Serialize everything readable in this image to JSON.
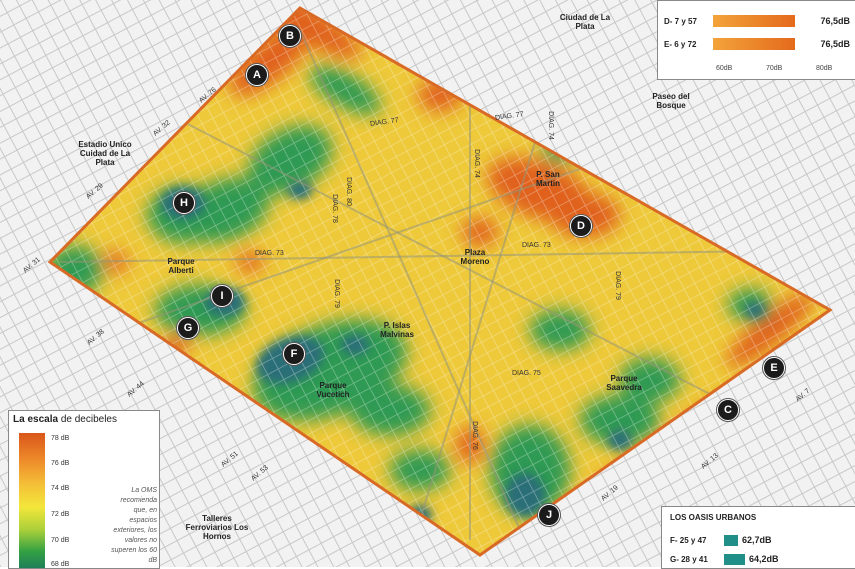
{
  "colors": {
    "loud": "#e0601c",
    "mid": "#f0d23a",
    "quiet": "#2d9a52",
    "quietest": "#2a6e78",
    "block_line": "#c9c9c9",
    "legend_bar": "#e46a1c",
    "oasis_bar": "#1f8f87"
  },
  "markers": [
    "A",
    "B",
    "C",
    "D",
    "E",
    "F",
    "G",
    "H",
    "I",
    "J"
  ],
  "places": {
    "ciudad": "Ciudad de La Plata",
    "paseo": "Paseo del Bosque",
    "estadio": "Estadio Unico Cuidad de La Plata",
    "parque_alberti": "Parque Alberti",
    "plaza_moreno": "Plaza Moreno",
    "p_san_martin": "P. San Martin",
    "p_malvinas": "P. Islas Malvinas",
    "parque_vucetich": "Parque Vucetich",
    "parque_saavedra": "Parque Saavedra",
    "talleres": "Talleres Ferroviarios Los Hornos"
  },
  "streets": {
    "diag77": "DIAG. 77",
    "diag77b": "DIAG. 77",
    "diag73a": "DIAG. 73",
    "diag73b": "DIAG. 73",
    "diag74": "DIAG. 74",
    "diag74b": "DIAG. 74",
    "diag78": "DIAG. 78",
    "diag79": "DIAG. 79",
    "diag75": "DIAG. 75",
    "diag80": "DIAG. 80",
    "diag76": "DIAG. 76",
    "diag79b": "DIAG. 79",
    "av76": "AV. 76",
    "av32": "AV. 32",
    "av29": "AV. 29",
    "av31": "AV. 31",
    "av38": "AV. 38",
    "av44": "AV. 44",
    "av51": "AV. 51",
    "av53": "AV. 53",
    "av13": "AV. 13",
    "av7": "AV. 7",
    "av19": "AV. 19"
  },
  "top_legend": {
    "rows": [
      {
        "label": "D- 7 y 57",
        "value": "76,5dB",
        "level": 76.5
      },
      {
        "label": "E- 6 y 72",
        "value": "76,5dB",
        "level": 76.5
      }
    ],
    "ticks": [
      "60dB",
      "70dB",
      "80dB"
    ]
  },
  "scale": {
    "title_bold": "La escala",
    "title_rest": " de decibeles",
    "ticks": [
      "78 dB",
      "76 dB",
      "74 dB",
      "72 dB",
      "70 dB",
      "68 dB"
    ],
    "note": "La OMS recomienda que, en espacios exteriores, los valores no superen los 60 dB"
  },
  "oasis": {
    "title": "LOS OASIS URBANOS",
    "rows": [
      {
        "label": "F- 25 y 47",
        "value": "62,7dB",
        "level": 62.7
      },
      {
        "label": "G- 28 y 41",
        "value": "64,2dB",
        "level": 64.2
      }
    ]
  }
}
